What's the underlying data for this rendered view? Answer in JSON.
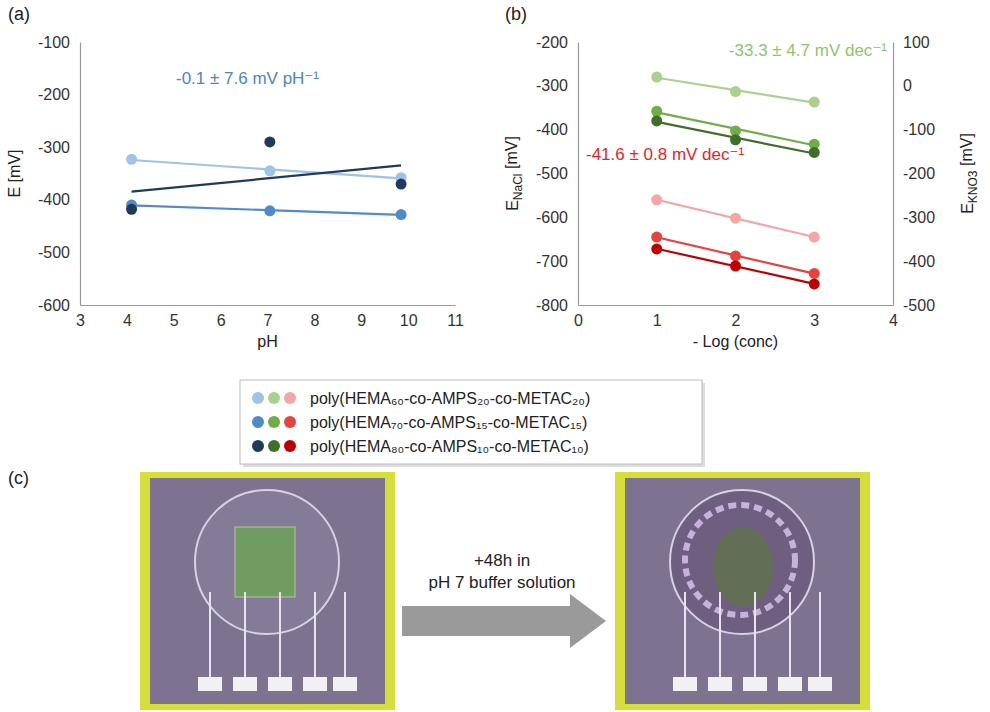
{
  "chart_data": [
    {
      "type": "scatter",
      "title": "(a)",
      "xlabel": "pH",
      "ylabel": "E [mV]",
      "x": [
        4.1,
        7.05,
        9.85
      ],
      "xlim": [
        3,
        11
      ],
      "xticks": [
        3,
        4,
        5,
        6,
        7,
        8,
        9,
        10,
        11
      ],
      "ylim": [
        -600,
        -100
      ],
      "yticks": [
        -600,
        -500,
        -400,
        -300,
        -200,
        -100
      ],
      "line_style": "trend",
      "marker": "circle",
      "legend": "bottom",
      "annotations": [
        {
          "text": "-0.1 ± 7.6 mV pH⁻¹",
          "color": "#4a86c8"
        }
      ],
      "series": [
        {
          "name": "poly(HEMA₆₀-co-AMPS₂₀-co-METAC₂₀)",
          "color": "#9dc3e6",
          "values": [
            -323,
            -345,
            -358
          ]
        },
        {
          "name": "poly(HEMA₇₀-co-AMPS₁₅-co-METAC₁₅)",
          "color": "#4f8bcb",
          "values": [
            -410,
            -421,
            -428
          ]
        },
        {
          "name": "poly(HEMA₈₀-co-AMPS₁₀-co-METAC₁₀)",
          "color": "#1f3a5f",
          "values": [
            -418,
            -290,
            -370
          ]
        }
      ]
    },
    {
      "type": "scatter",
      "title": "(b)",
      "xlabel": "- Log (conc)",
      "ylabel": "ENaCl [mV]",
      "y2label": "EKNO3 [mV]",
      "x": [
        1,
        2,
        3
      ],
      "xlim": [
        0,
        4
      ],
      "xticks": [
        0,
        1,
        2,
        3,
        4
      ],
      "ylim": [
        -800,
        -200
      ],
      "yticks": [
        -800,
        -700,
        -600,
        -500,
        -400,
        -300,
        -200
      ],
      "y2lim": [
        -500,
        100
      ],
      "y2ticks": [
        -500,
        -400,
        -300,
        -200,
        -100,
        0,
        100
      ],
      "line_style": "trend",
      "marker": "circle",
      "annotations": [
        {
          "text": "-33.3 ± 4.7 mV dec⁻¹",
          "color": "#8cc56b"
        },
        {
          "text": "-41.6 ± 0.8 mV dec⁻¹",
          "color": "#e8231f"
        }
      ],
      "series": [
        {
          "color": "#a9d18e",
          "axis": "y2",
          "values": [
            20,
            -13,
            -37
          ]
        },
        {
          "color": "#70ad47",
          "axis": "y2",
          "values": [
            -58,
            -103,
            -133
          ]
        },
        {
          "color": "#3f6e2a",
          "axis": "y2",
          "values": [
            -80,
            -123,
            -152
          ]
        },
        {
          "color": "#f4a6a6",
          "values": [
            -560,
            -602,
            -645
          ]
        },
        {
          "color": "#e8423f",
          "values": [
            -645,
            -688,
            -728
          ]
        },
        {
          "color": "#c00000",
          "values": [
            -672,
            -711,
            -752
          ]
        }
      ]
    }
  ],
  "panel_c": {
    "title": "(c)",
    "caption": [
      "+48h in",
      "pH 7 buffer solution"
    ]
  }
}
